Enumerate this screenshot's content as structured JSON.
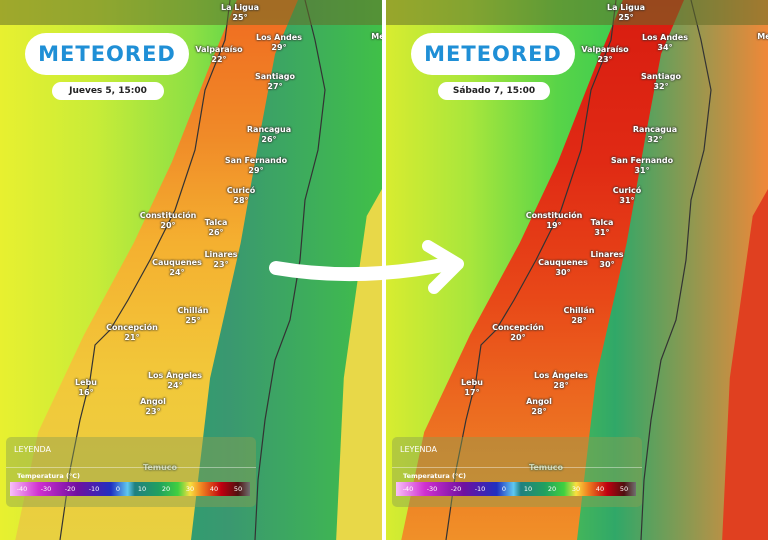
{
  "brand": "METEORED",
  "panels": [
    {
      "date": "Jueves 5, 15:00",
      "cities": [
        [
          "La Ligua",
          "25°"
        ],
        [
          "Los Andes",
          "29°"
        ],
        [
          "Valparaíso",
          "22°"
        ],
        [
          "Santiago",
          "27°"
        ],
        [
          "Rancagua",
          "26°"
        ],
        [
          "San Fernando",
          "29°"
        ],
        [
          "Curicó",
          "28°"
        ],
        [
          "Constitución",
          "20°"
        ],
        [
          "Talca",
          "26°"
        ],
        [
          "Linares",
          "23°"
        ],
        [
          "Cauquenes",
          "24°"
        ],
        [
          "Chillán",
          "25°"
        ],
        [
          "Concepción",
          "21°"
        ],
        [
          "Los Ángeles",
          "24°"
        ],
        [
          "Lebu",
          "16°"
        ],
        [
          "Angol",
          "23°"
        ],
        [
          "Temuco",
          ""
        ],
        [
          "Me",
          ""
        ]
      ]
    },
    {
      "date": "Sábado 7, 15:00",
      "cities": [
        [
          "La Ligua",
          "25°"
        ],
        [
          "Los Andes",
          "34°"
        ],
        [
          "Valparaíso",
          "23°"
        ],
        [
          "Santiago",
          "32°"
        ],
        [
          "Rancagua",
          "32°"
        ],
        [
          "San Fernando",
          "31°"
        ],
        [
          "Curicó",
          "31°"
        ],
        [
          "Constitución",
          "19°"
        ],
        [
          "Talca",
          "31°"
        ],
        [
          "Linares",
          "30°"
        ],
        [
          "Cauquenes",
          "30°"
        ],
        [
          "Chillán",
          "28°"
        ],
        [
          "Concepción",
          "20°"
        ],
        [
          "Los Ángeles",
          "28°"
        ],
        [
          "Lebu",
          "17°"
        ],
        [
          "Angol",
          "28°"
        ],
        [
          "Temuco",
          ""
        ],
        [
          "Me",
          ""
        ]
      ]
    }
  ],
  "legend": {
    "title": "LEYENDA",
    "subtitle": "Temperatura (°C)",
    "ticks": [
      "-40",
      "-30",
      "-20",
      "-10",
      "0",
      "10",
      "20",
      "30",
      "40",
      "50"
    ]
  },
  "colors": {
    "brand": "#1f8fd6",
    "hot": "#d81c10",
    "cold": "#7010a0"
  },
  "icons": {
    "arrow": "curved-arrow-right"
  }
}
